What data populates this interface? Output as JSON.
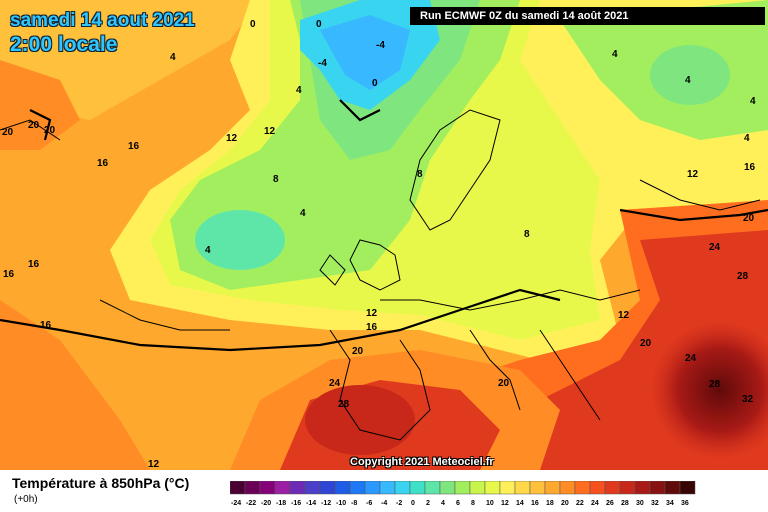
{
  "header": {
    "date_line": "samedi 14 aout 2021",
    "time_line": "2:00 locale",
    "run_info": "Run ECMWF 0Z du samedi 14 août 2021"
  },
  "copyright": "Copyright 2021 Meteociel.fr",
  "footer": {
    "title": "Température à 850hPa (°C)",
    "subtitle": "(+0h)"
  },
  "legend": {
    "values": [
      "-24",
      "-22",
      "-20",
      "-18",
      "-16",
      "-14",
      "-12",
      "-10",
      "-8",
      "-6",
      "-4",
      "-2",
      "0",
      "2",
      "4",
      "6",
      "8",
      "10",
      "12",
      "14",
      "16",
      "18",
      "20",
      "22",
      "24",
      "26",
      "28",
      "30",
      "32",
      "34",
      "36"
    ],
    "colors": [
      "#4a0033",
      "#6b0057",
      "#86007a",
      "#9b1ea4",
      "#6d2bb5",
      "#4b3ec8",
      "#2f45d6",
      "#1e5ce8",
      "#1e78f5",
      "#2a98ff",
      "#38b8ff",
      "#38d4f0",
      "#3fe0c8",
      "#5ee6a8",
      "#7fe67f",
      "#a2ee5f",
      "#c8f44c",
      "#e8f84a",
      "#fff05a",
      "#ffd84a",
      "#ffc03c",
      "#ffa82e",
      "#ff8c24",
      "#ff6e1e",
      "#f5501e",
      "#e03a1e",
      "#c8281a",
      "#a81a16",
      "#881212",
      "#600a0a",
      "#380404"
    ]
  },
  "map_labels": [
    {
      "text": "0"
    },
    {
      "text": "0"
    },
    {
      "text": "4"
    },
    {
      "text": "-4"
    },
    {
      "text": "-4"
    },
    {
      "text": "0"
    },
    {
      "text": "4"
    },
    {
      "text": "4"
    },
    {
      "text": "4"
    },
    {
      "text": "20"
    },
    {
      "text": "20"
    },
    {
      "text": "20"
    },
    {
      "text": "16"
    },
    {
      "text": "16"
    },
    {
      "text": "12"
    },
    {
      "text": "12"
    },
    {
      "text": "8"
    },
    {
      "text": "4"
    },
    {
      "text": "4"
    },
    {
      "text": "8"
    },
    {
      "text": "8"
    },
    {
      "text": "4"
    },
    {
      "text": "4"
    },
    {
      "text": "16"
    },
    {
      "text": "12"
    },
    {
      "text": "16"
    },
    {
      "text": "20"
    },
    {
      "text": "24"
    },
    {
      "text": "28"
    },
    {
      "text": "16"
    },
    {
      "text": "16"
    },
    {
      "text": "12"
    },
    {
      "text": "16"
    },
    {
      "text": "12"
    },
    {
      "text": "20"
    },
    {
      "text": "20"
    },
    {
      "text": "24"
    },
    {
      "text": "28"
    },
    {
      "text": "20"
    },
    {
      "text": "24"
    },
    {
      "text": "28"
    },
    {
      "text": "32"
    },
    {
      "text": "12"
    }
  ]
}
